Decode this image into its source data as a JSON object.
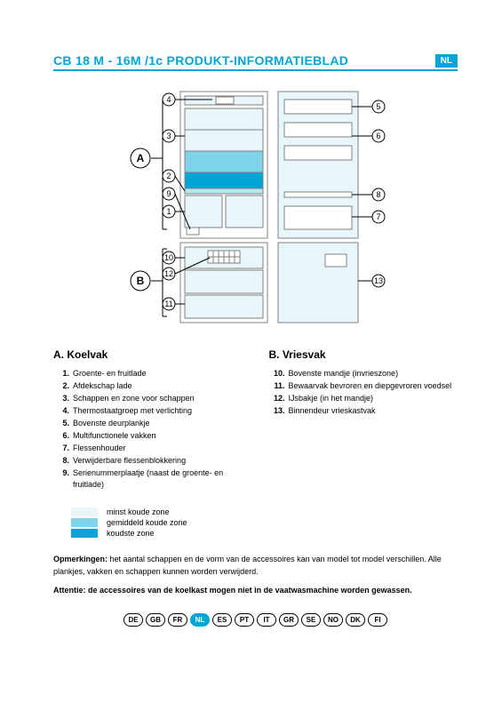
{
  "header": {
    "title": "CB 18 M - 16M /1c  PRODUKT-INFORMATIEBLAD",
    "badge": "NL",
    "accent_color": "#00a4d6"
  },
  "diagram": {
    "zone_markers": {
      "A": "A",
      "B": "B"
    },
    "callouts_left_top": [
      "4",
      "3",
      "2",
      "9",
      "1"
    ],
    "callouts_left_bot": [
      "10",
      "12",
      "11"
    ],
    "callouts_right_top": [
      "5",
      "6",
      "8",
      "7"
    ],
    "callouts_right_bot": [
      "13"
    ],
    "colors": {
      "outline": "#808080",
      "shelf": "#b9e6f3",
      "zone_light": "#e6f6fb",
      "zone_mid": "#7fd4ea",
      "zone_cold": "#00a4d6",
      "panel": "#ffffff",
      "shadow": "#dce9ed"
    }
  },
  "sections": {
    "a": {
      "title": "A.   Koelvak",
      "items": [
        {
          "n": "1.",
          "t": "Groente- en fruitlade"
        },
        {
          "n": "2.",
          "t": "Afdekschap lade"
        },
        {
          "n": "3.",
          "t": "Schappen en zone voor schappen"
        },
        {
          "n": "4.",
          "t": "Thermostaatgroep met verlichting"
        },
        {
          "n": "5.",
          "t": "Bovenste deurplankje"
        },
        {
          "n": "6.",
          "t": "Multifunctionele vakken"
        },
        {
          "n": "7.",
          "t": "Flessenhouder"
        },
        {
          "n": "8.",
          "t": "Verwijderbare flessenblokkering"
        },
        {
          "n": "9.",
          "t": "Serienummerplaatje (naast de groente- en fruitlade)"
        }
      ]
    },
    "b": {
      "title": "B.   Vriesvak",
      "items": [
        {
          "n": "10.",
          "t": "Bovenste mandje (invrieszone)"
        },
        {
          "n": "11.",
          "t": "Bewaarvak bevroren en diepgevroren voedsel"
        },
        {
          "n": "12.",
          "t": "IJsbakje (in het mandje)"
        },
        {
          "n": "13.",
          "t": "Binnendeur vrieskastvak"
        }
      ]
    }
  },
  "legend": {
    "rows": [
      {
        "color": "#e6f6fb",
        "label": "minst koude zone"
      },
      {
        "color": "#7fd4ea",
        "label": "gemiddeld koude zone"
      },
      {
        "color": "#00a4d6",
        "label": "koudste zone"
      }
    ]
  },
  "notes": {
    "remark_label": "Opmerkingen:",
    "remark_text": " het aantal schappen en de vorm van de accessoires kan van model tot model verschillen. Alle plankjes, vakken en schappen kunnen worden verwijderd.",
    "attention": "Attentie: de accessoires van de koelkast mogen niet in de vaatwasmachine worden gewassen."
  },
  "languages": [
    "DE",
    "GB",
    "FR",
    "NL",
    "ES",
    "PT",
    "IT",
    "GR",
    "SE",
    "NO",
    "DK",
    "FI"
  ],
  "active_language": "NL"
}
